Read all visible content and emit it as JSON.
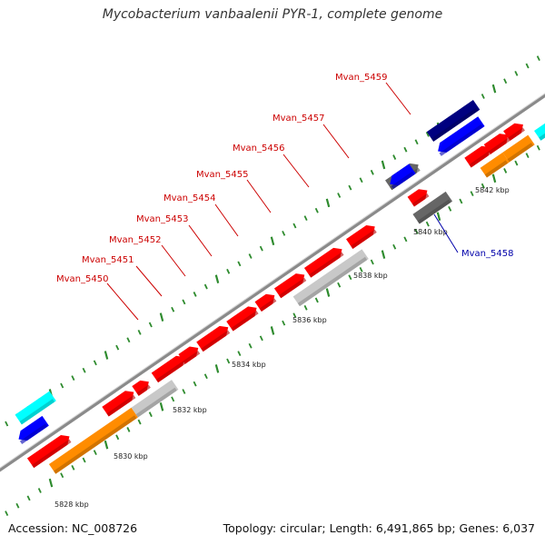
{
  "title": "Mycobacterium vanbaalenii PYR-1, complete genome",
  "footer": {
    "accession": "Accession: NC_008726",
    "topology": "Topology: circular; Length: 6,491,865 bp; Genes: 6,037"
  },
  "colors": {
    "backbone": "#8a8a8a",
    "tick": "#2e8b2e",
    "forward_label": "#cc0000",
    "reverse_label": "#0000aa",
    "red": "#ff0000",
    "orange": "#ff8c00",
    "light_gray": "#c8c8c8",
    "dark_gray": "#666666",
    "blue": "#0000ff",
    "navy": "#000080",
    "cyan": "#00ffff"
  },
  "scale_labels": [
    "5828 kbp",
    "5830 kbp",
    "5832 kbp",
    "5834 kbp",
    "5836 kbp",
    "5838 kbp",
    "5840 kbp",
    "5842 kbp"
  ],
  "gene_labels": [
    {
      "text": "Mvan_5450",
      "strand": "forward"
    },
    {
      "text": "Mvan_5451",
      "strand": "forward"
    },
    {
      "text": "Mvan_5452",
      "strand": "forward"
    },
    {
      "text": "Mvan_5453",
      "strand": "forward"
    },
    {
      "text": "Mvan_5454",
      "strand": "forward"
    },
    {
      "text": "Mvan_5455",
      "strand": "forward"
    },
    {
      "text": "Mvan_5456",
      "strand": "forward"
    },
    {
      "text": "Mvan_5457",
      "strand": "forward"
    },
    {
      "text": "Mvan_5459",
      "strand": "forward"
    },
    {
      "text": "Mvan_5458",
      "strand": "reverse"
    }
  ],
  "features": [
    {
      "track": "forward-cds",
      "color": "red"
    },
    {
      "track": "forward-cds",
      "color": "red"
    },
    {
      "track": "forward-cds",
      "color": "red"
    },
    {
      "track": "forward-cds",
      "color": "red"
    },
    {
      "track": "forward-cds",
      "color": "red"
    },
    {
      "track": "forward-cds",
      "color": "red"
    },
    {
      "track": "forward-cds",
      "color": "red"
    },
    {
      "track": "forward-cds",
      "color": "red"
    },
    {
      "track": "forward-cds",
      "color": "red"
    },
    {
      "track": "forward-cds",
      "color": "red"
    },
    {
      "track": "forward-cds",
      "color": "red"
    },
    {
      "track": "forward-cds",
      "color": "red"
    },
    {
      "track": "forward-cds",
      "color": "red"
    },
    {
      "track": "forward-cds",
      "color": "red"
    },
    {
      "track": "forward-cds",
      "color": "red"
    },
    {
      "track": "forward-cds",
      "color": "red"
    },
    {
      "track": "forward-gene",
      "color": "orange"
    },
    {
      "track": "forward-gene",
      "color": "light_gray"
    },
    {
      "track": "forward-gene",
      "color": "light_gray"
    },
    {
      "track": "forward-gene",
      "color": "dark_gray"
    },
    {
      "track": "forward-gene",
      "color": "orange"
    },
    {
      "track": "forward-gene",
      "color": "orange"
    },
    {
      "track": "forward-gene",
      "color": "cyan"
    },
    {
      "track": "reverse-cds",
      "color": "blue"
    },
    {
      "track": "reverse-cds",
      "color": "dark_gray"
    },
    {
      "track": "reverse-cds",
      "color": "blue"
    },
    {
      "track": "reverse-cds",
      "color": "blue"
    },
    {
      "track": "reverse-gene",
      "color": "cyan"
    },
    {
      "track": "reverse-gene",
      "color": "navy"
    }
  ]
}
